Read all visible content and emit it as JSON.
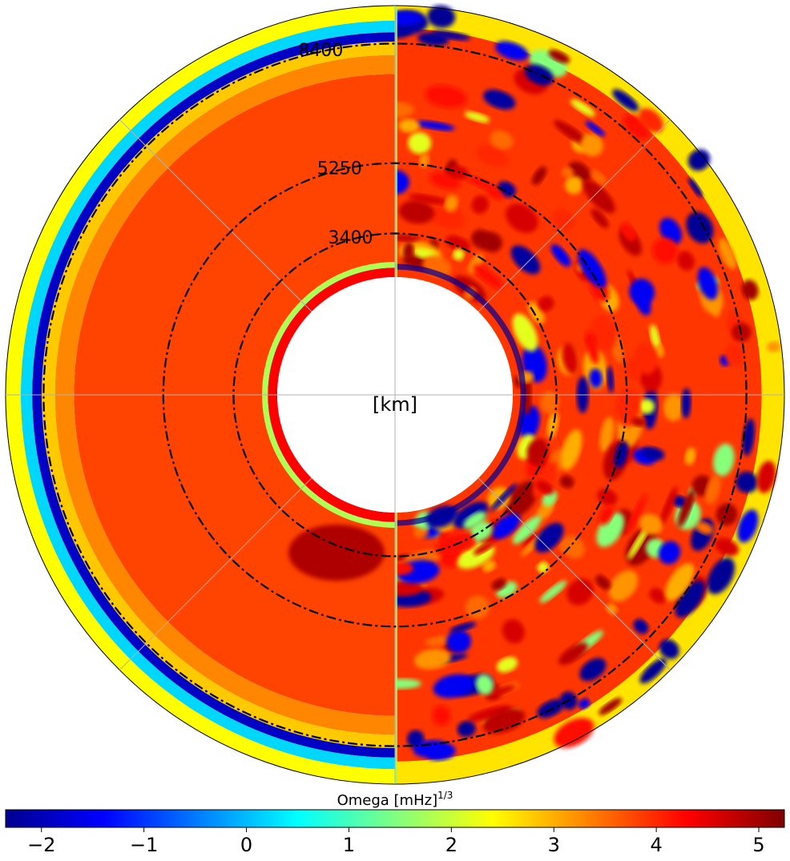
{
  "chart_data": {
    "type": "heatmap",
    "projection": "polar",
    "center_label": "[km]",
    "radial_ticks": [
      "3400",
      "5250",
      "8400"
    ],
    "radial_tick_values": [
      3400,
      5250,
      8400
    ],
    "radius_range": [
      2250,
      9400
    ],
    "reference_circles": [
      3400,
      5250,
      8400
    ],
    "reference_circle_style": "dash-dot",
    "grid": true,
    "grid_angles_deg": [
      0,
      45,
      90,
      135,
      180,
      225,
      270,
      315
    ],
    "colorbar": {
      "label": "Omega [mHz]",
      "label_exponent": "1/3",
      "placement": "bottom",
      "colormap": "jet",
      "range": [
        -2.35,
        5.25
      ],
      "ticks": [
        "−2",
        "−1",
        "0",
        "1",
        "2",
        "3",
        "4",
        "5"
      ],
      "tick_values": [
        -2,
        -1,
        0,
        1,
        2,
        3,
        4,
        5
      ]
    },
    "left_half_layers": [
      {
        "r": [
          2250,
          2500
        ],
        "value": 4.3
      },
      {
        "r": [
          2500,
          2650
        ],
        "value": 1.8
      },
      {
        "r": [
          2650,
          7600
        ],
        "value": 3.8
      },
      {
        "r": [
          7600,
          8100
        ],
        "value": 3.3
      },
      {
        "r": [
          8100,
          8450
        ],
        "value": 2.8
      },
      {
        "r": [
          8450,
          8700
        ],
        "value": -1.9
      },
      {
        "r": [
          8700,
          9000
        ],
        "value": 0.2
      },
      {
        "r": [
          9000,
          9400
        ],
        "value": 2.4
      }
    ],
    "right_half_range": [
      -2.35,
      5.25
    ]
  }
}
